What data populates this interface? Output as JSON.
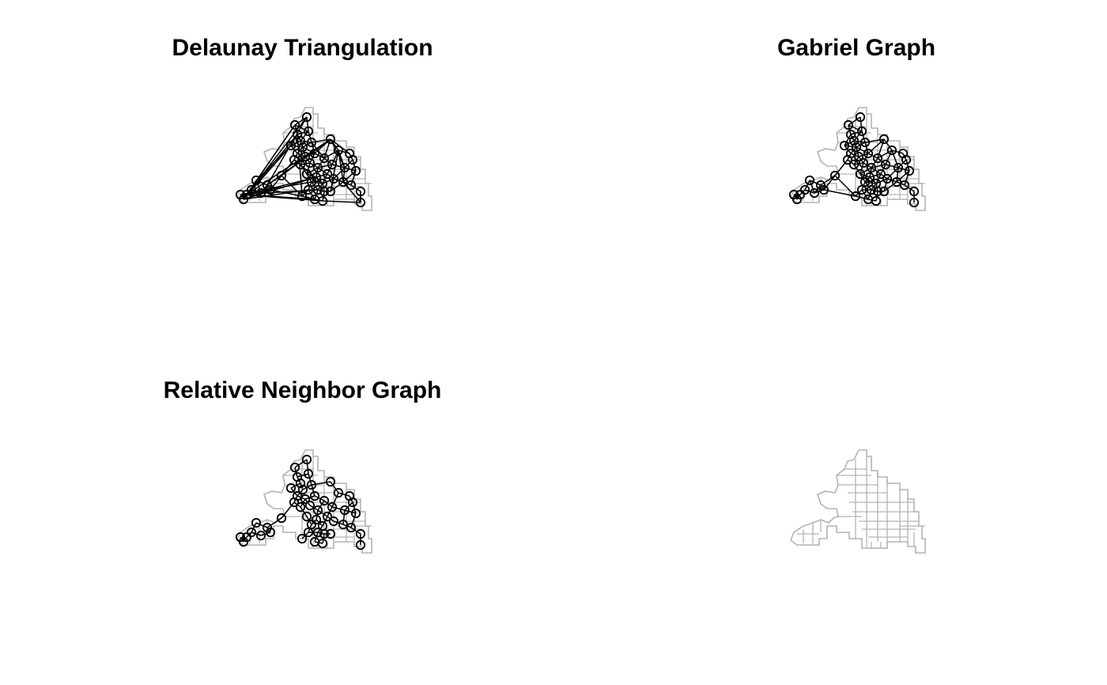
{
  "panels": [
    {
      "title": "Delaunay Triangulation"
    },
    {
      "title": "Gabriel Graph"
    },
    {
      "title": "Relative Neighbor Graph"
    },
    {
      "title": ""
    }
  ],
  "colors": {
    "boundary": "#b3b3b3",
    "edges": "#000000",
    "nodes": "#000000",
    "background": "#ffffff"
  }
}
